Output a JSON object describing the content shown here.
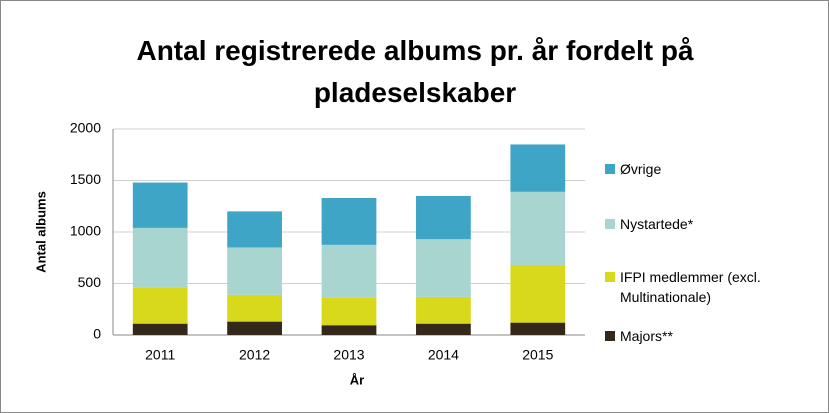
{
  "chart_data": {
    "type": "stacked_bar",
    "title": "Antal registrerede albums pr. år fordelt på pladeselskaber",
    "xlabel": "År",
    "ylabel": "Antal albums",
    "categories": [
      "2011",
      "2012",
      "2013",
      "2014",
      "2015"
    ],
    "series": [
      {
        "name": "Majors**",
        "color": "#33281a",
        "values": [
          110,
          130,
          95,
          110,
          120
        ]
      },
      {
        "name": "IFPI medlemmer (excl. Multinationale)",
        "color": "#d9d91c",
        "values": [
          350,
          260,
          265,
          260,
          560
        ]
      },
      {
        "name": "Nystartede*",
        "color": "#a9d5d1",
        "values": [
          580,
          460,
          515,
          560,
          710
        ]
      },
      {
        "name": "Øvrige",
        "color": "#3fa5c6",
        "values": [
          440,
          350,
          455,
          420,
          460
        ]
      }
    ],
    "ylim": [
      0,
      2000
    ],
    "yticks": [
      0,
      500,
      1000,
      1500,
      2000
    ],
    "grid": true,
    "legend": "right"
  }
}
